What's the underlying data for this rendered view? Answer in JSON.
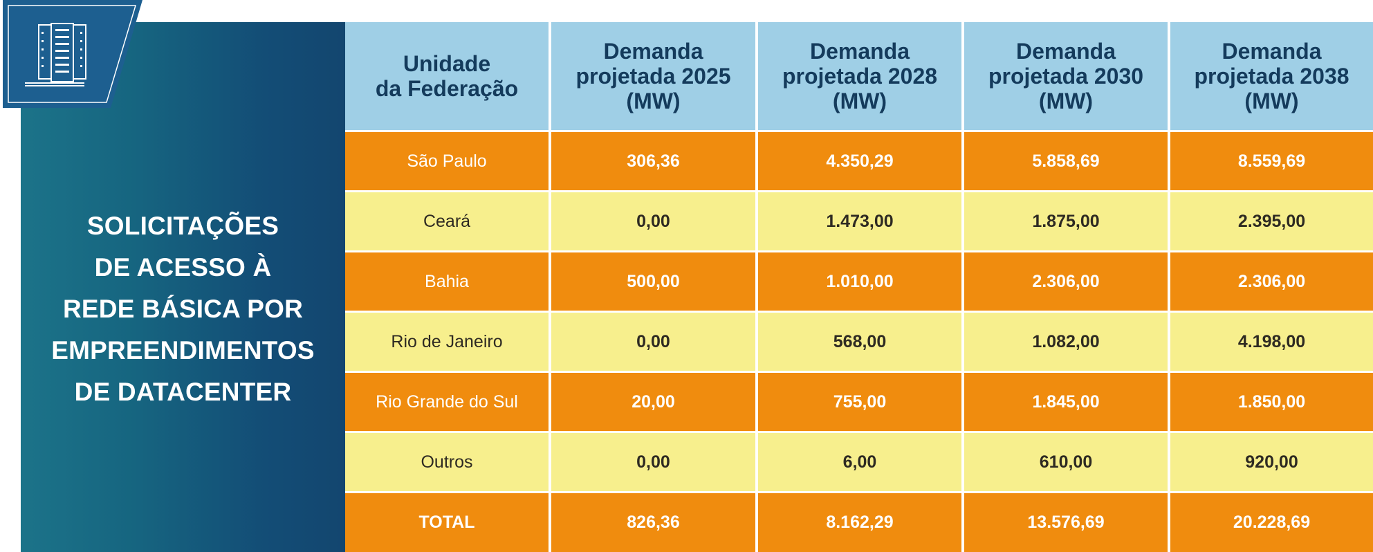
{
  "panel": {
    "title": "SOLICITAÇÕES\nDE ACESSO À\nREDE BÁSICA POR\nEMPREENDIMENTOS\nDE DATACENTER",
    "icon": "server-rack-icon"
  },
  "colors": {
    "panel_start": "#1c7389",
    "panel_end": "#13466f",
    "header_bg": "#9fcfe6",
    "header_text": "#143b5c",
    "row_orange": "#f08c0e",
    "row_yellow": "#f7ef8d"
  },
  "table": {
    "headers": [
      "Unidade\nda Federação",
      "Demanda\nprojetada 2025\n(MW)",
      "Demanda\nprojetada 2028\n(MW)",
      "Demanda\nprojetada 2030\n(MW)",
      "Demanda\nprojetada 2038\n(MW)"
    ],
    "rows": [
      [
        "São Paulo",
        "306,36",
        "4.350,29",
        "5.858,69",
        "8.559,69"
      ],
      [
        "Ceará",
        "0,00",
        "1.473,00",
        "1.875,00",
        "2.395,00"
      ],
      [
        "Bahia",
        "500,00",
        "1.010,00",
        "2.306,00",
        "2.306,00"
      ],
      [
        "Rio de Janeiro",
        "0,00",
        "568,00",
        "1.082,00",
        "4.198,00"
      ],
      [
        "Rio Grande do Sul",
        "20,00",
        "755,00",
        "1.845,00",
        "1.850,00"
      ],
      [
        "Outros",
        "0,00",
        "6,00",
        "610,00",
        "920,00"
      ],
      [
        "TOTAL",
        "826,36",
        "8.162,29",
        "13.576,69",
        "20.228,69"
      ]
    ]
  }
}
